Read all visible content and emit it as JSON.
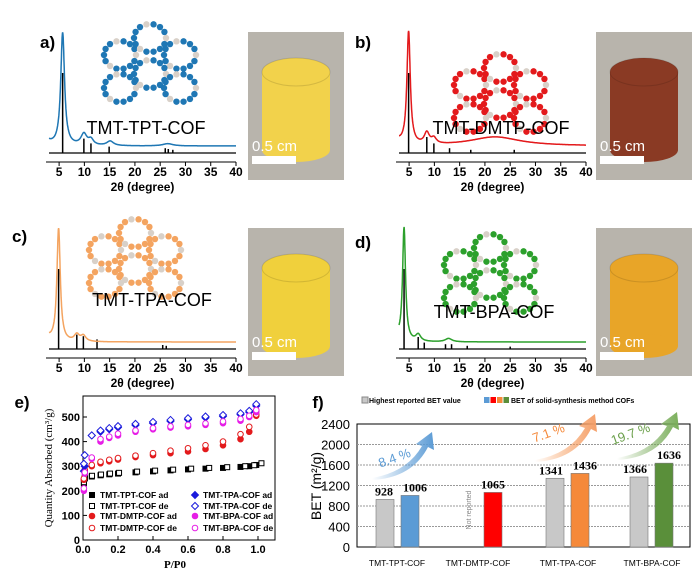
{
  "chart_data": [
    {
      "panel": "a)",
      "type": "line",
      "name": "TMT-TPT-COF",
      "color": "#1f77b4",
      "xlabel": "2θ (degree)",
      "xlim": [
        3,
        40
      ],
      "xticks": [
        "5",
        "10",
        "15",
        "20",
        "25",
        "30",
        "35",
        "40"
      ],
      "experimental_peaks": [
        [
          5.7,
          1.0,
          0.45
        ],
        [
          9.9,
          0.1,
          0.7
        ],
        [
          11.3,
          0.05,
          0.6
        ],
        [
          15.1,
          0.04,
          0.8
        ],
        [
          26.5,
          0.02,
          1.2
        ]
      ],
      "simulated_peaks": [
        [
          5.7,
          1.0
        ],
        [
          9.9,
          0.18
        ],
        [
          11.3,
          0.12
        ],
        [
          14.9,
          0.08
        ],
        [
          26.0,
          0.06
        ],
        [
          26.6,
          0.05
        ],
        [
          27.5,
          0.04
        ]
      ],
      "photo_color": "#f2d24b",
      "scale_bar": "0.5 cm"
    },
    {
      "panel": "b)",
      "type": "line",
      "name": "TMT-DMTP-COF",
      "color": "#e31a1c",
      "xlabel": "2θ (degree)",
      "xlim": [
        3,
        40
      ],
      "xticks": [
        "5",
        "10",
        "15",
        "20",
        "25",
        "30",
        "35",
        "40"
      ],
      "experimental_peaks": [
        [
          4.9,
          1.0,
          0.4
        ],
        [
          8.5,
          0.1,
          0.6
        ],
        [
          9.9,
          0.05,
          0.6
        ],
        [
          22,
          0.08,
          6
        ]
      ],
      "simulated_peaks": [
        [
          4.9,
          1.0
        ],
        [
          8.5,
          0.2
        ],
        [
          9.9,
          0.12
        ],
        [
          13.0,
          0.06
        ],
        [
          17.2,
          0.04
        ],
        [
          25.8,
          0.04
        ]
      ],
      "photo_color": "#8a3a24",
      "scale_bar": "0.5 cm"
    },
    {
      "panel": "c)",
      "type": "line",
      "name": "TMT-TPA-COF",
      "color": "#f4a460",
      "xlabel": "2θ (degree)",
      "xlim": [
        3,
        40
      ],
      "xticks": [
        "5",
        "10",
        "15",
        "20",
        "25",
        "30",
        "35",
        "40"
      ],
      "experimental_peaks": [
        [
          4.9,
          1.0,
          0.4
        ],
        [
          8.5,
          0.06,
          0.6
        ],
        [
          9.8,
          0.05,
          0.6
        ]
      ],
      "simulated_peaks": [
        [
          4.9,
          1.0
        ],
        [
          8.5,
          0.18
        ],
        [
          9.8,
          0.16
        ],
        [
          12.5,
          0.12
        ],
        [
          25.5,
          0.05
        ],
        [
          26.2,
          0.04
        ]
      ],
      "photo_color": "#f0d03c",
      "scale_bar": "0.5 cm"
    },
    {
      "panel": "d)",
      "type": "line",
      "name": "TMT-BPA-COF",
      "color": "#2ca02c",
      "xlabel": "2θ (degree)",
      "xlim": [
        3,
        40
      ],
      "xticks": [
        "5",
        "10",
        "15",
        "20",
        "25",
        "30",
        "35",
        "40"
      ],
      "experimental_peaks": [
        [
          4.0,
          1.0,
          0.35
        ],
        [
          6.8,
          0.06,
          0.6
        ],
        [
          12.8,
          0.03,
          0.8
        ]
      ],
      "simulated_peaks": [
        [
          4.0,
          1.0
        ],
        [
          6.8,
          0.15
        ],
        [
          8.0,
          0.08
        ],
        [
          12.2,
          0.06
        ],
        [
          13.4,
          0.06
        ],
        [
          16.5,
          0.04
        ],
        [
          25.0,
          0.03
        ]
      ],
      "photo_color": "#e8a528",
      "scale_bar": "0.5 cm"
    },
    {
      "panel": "e)",
      "type": "scatter",
      "xlabel": "P/P0",
      "ylabel": "Quantity Absorbed (cm³/g)",
      "xlim": [
        0,
        1.05
      ],
      "ylim": [
        0,
        570
      ],
      "xticks": [
        "0.0",
        "0.2",
        "0.4",
        "0.6",
        "0.8",
        "1.0"
      ],
      "yticks": [
        "0",
        "100",
        "200",
        "300",
        "400",
        "500"
      ],
      "x": [
        0.005,
        0.01,
        0.05,
        0.1,
        0.15,
        0.2,
        0.3,
        0.4,
        0.5,
        0.6,
        0.7,
        0.8,
        0.9,
        0.95,
        0.99
      ],
      "series": [
        {
          "name": "TMT-TPT-COF ad",
          "color": "#000000",
          "marker": "square-filled",
          "values": [
            230,
            250,
            258,
            263,
            267,
            270,
            275,
            279,
            283,
            287,
            290,
            293,
            297,
            300,
            305
          ]
        },
        {
          "name": "TMT-TPT-COF de",
          "color": "#000000",
          "marker": "square-open",
          "values": [
            235,
            252,
            261,
            266,
            270,
            273,
            278,
            282,
            286,
            290,
            293,
            296,
            300,
            304,
            312
          ]
        },
        {
          "name": "TMT-DMTP-COF ad",
          "color": "#e31a1c",
          "marker": "circle-filled",
          "values": [
            245,
            280,
            300,
            312,
            320,
            327,
            337,
            345,
            353,
            360,
            370,
            385,
            410,
            440,
            505
          ]
        },
        {
          "name": "TMT-DMTP-COF de",
          "color": "#e31a1c",
          "marker": "circle-open",
          "values": [
            250,
            285,
            305,
            318,
            326,
            333,
            343,
            353,
            363,
            373,
            385,
            400,
            430,
            460,
            510
          ]
        },
        {
          "name": "TMT-TPA-COF ad",
          "color": "#1a1adc",
          "marker": "diamond-filled",
          "values": [
            280,
            300,
            425,
            440,
            450,
            458,
            467,
            475,
            483,
            490,
            497,
            503,
            510,
            520,
            545
          ]
        },
        {
          "name": "TMT-TPA-COF de",
          "color": "#1a1adc",
          "marker": "diamond-open",
          "values": [
            310,
            345,
            425,
            445,
            455,
            463,
            472,
            480,
            488,
            495,
            502,
            508,
            515,
            525,
            552
          ]
        },
        {
          "name": "TMT-BPA-COF ad",
          "color": "#e61ee6",
          "marker": "circle-filled",
          "values": [
            200,
            270,
            330,
            400,
            415,
            425,
            440,
            450,
            457,
            462,
            468,
            475,
            485,
            500,
            520
          ]
        },
        {
          "name": "TMT-BPA-COF de",
          "color": "#e61ee6",
          "marker": "circle-open",
          "values": [
            210,
            275,
            335,
            410,
            420,
            432,
            445,
            455,
            462,
            468,
            474,
            482,
            492,
            505,
            528
          ]
        }
      ]
    },
    {
      "panel": "f)",
      "type": "bar",
      "ylabel": "BET (m²/g)",
      "ylim": [
        0,
        2400
      ],
      "yticks": [
        "0",
        "400",
        "800",
        "1200",
        "1600",
        "2000",
        "2400"
      ],
      "grid": true,
      "categories": [
        "TMT-TPT-COF",
        "TMT-DMTP-COF",
        "TMT-TPA-COF",
        "TMT-BPA-COF"
      ],
      "legend": [
        "Highest reported BET value",
        "BET of solid-synthesis method COFs"
      ],
      "legend_placement": "top",
      "series": [
        {
          "name": "Highest reported BET value",
          "values": [
            928,
            null,
            1341,
            1366
          ],
          "color": "#c8c8c8"
        },
        {
          "name": "BET of solid-synthesis method COFs",
          "values": [
            1006,
            1065,
            1436,
            1636
          ],
          "colors": [
            "#5b9bd5",
            "#ff0000",
            "#f5893a",
            "#5a8f3a"
          ]
        }
      ],
      "data_labels": [
        [
          "928",
          "1006"
        ],
        [
          "1065"
        ],
        [
          "1341",
          "1436"
        ],
        [
          "1366",
          "1636"
        ]
      ],
      "not_reported_label": "Not reported",
      "annotations": [
        {
          "category": "TMT-TPT-COF",
          "text": "8.4 %",
          "color": "#5b9bd5"
        },
        {
          "category": "TMT-TPA-COF",
          "text": "7.1 %",
          "color": "#f5893a"
        },
        {
          "category": "TMT-BPA-COF",
          "text": "19.7 %",
          "color": "#6a9f4a"
        }
      ]
    }
  ]
}
